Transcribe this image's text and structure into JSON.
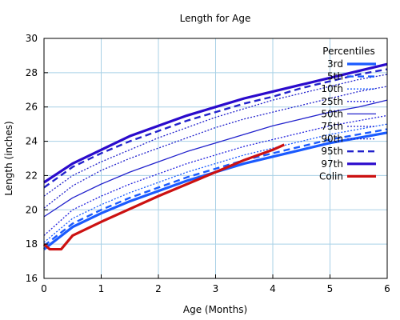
{
  "chart_data": {
    "type": "line",
    "title": "Length for Age",
    "xlabel": "Age (Months)",
    "ylabel": "Length (inches)",
    "xlim": [
      0,
      6
    ],
    "ylim": [
      16,
      30
    ],
    "x_ticks": [
      "0",
      "1",
      "2",
      "3",
      "4",
      "5",
      "6"
    ],
    "y_ticks": [
      "16",
      "18",
      "20",
      "22",
      "24",
      "26",
      "28",
      "30"
    ],
    "grid": true,
    "legend": {
      "title": "Percentiles",
      "placement": "top-right"
    },
    "x": [
      0,
      0.5,
      1,
      1.5,
      2,
      2.5,
      3,
      3.5,
      4,
      4.5,
      5,
      5.5,
      6
    ],
    "series": [
      {
        "name": "3rd",
        "color": "#1a5aff",
        "style": "solid",
        "width": "thick",
        "values": [
          17.7,
          19.0,
          19.8,
          20.5,
          21.1,
          21.7,
          22.2,
          22.7,
          23.1,
          23.5,
          23.9,
          24.2,
          24.5
        ]
      },
      {
        "name": "5th",
        "color": "#1a5aff",
        "style": "dashed",
        "width": "medium",
        "values": [
          17.9,
          19.2,
          20.0,
          20.7,
          21.3,
          21.9,
          22.4,
          22.9,
          23.3,
          23.7,
          24.1,
          24.4,
          24.7
        ]
      },
      {
        "name": "10th",
        "color": "#1a5aff",
        "style": "dotted",
        "width": "thin",
        "values": [
          18.1,
          19.5,
          20.3,
          21.0,
          21.6,
          22.2,
          22.7,
          23.2,
          23.6,
          24.0,
          24.4,
          24.7,
          25.0
        ]
      },
      {
        "name": "25th",
        "color": "#2222dd",
        "style": "dotted",
        "width": "thin",
        "values": [
          18.5,
          20.0,
          20.8,
          21.5,
          22.1,
          22.7,
          23.2,
          23.7,
          24.1,
          24.5,
          24.9,
          25.2,
          25.5
        ]
      },
      {
        "name": "50th",
        "color": "#2222cc",
        "style": "solid",
        "width": "thin",
        "values": [
          19.6,
          20.7,
          21.5,
          22.2,
          22.8,
          23.4,
          23.9,
          24.4,
          24.9,
          25.3,
          25.7,
          26.0,
          26.4
        ]
      },
      {
        "name": "75th",
        "color": "#2222cc",
        "style": "dotted",
        "width": "thin",
        "values": [
          20.1,
          21.4,
          22.3,
          23.0,
          23.6,
          24.2,
          24.8,
          25.3,
          25.7,
          26.1,
          26.5,
          26.9,
          27.2
        ]
      },
      {
        "name": "90th",
        "color": "#2222cc",
        "style": "dotted",
        "width": "thin",
        "values": [
          20.8,
          22.0,
          22.8,
          23.5,
          24.2,
          24.8,
          25.4,
          25.9,
          26.4,
          26.8,
          27.2,
          27.6,
          27.9
        ]
      },
      {
        "name": "95th",
        "color": "#2222cc",
        "style": "dashed",
        "width": "medium",
        "values": [
          21.3,
          22.5,
          23.3,
          24.0,
          24.6,
          25.2,
          25.7,
          26.2,
          26.6,
          27.1,
          27.5,
          27.9,
          28.2
        ]
      },
      {
        "name": "97th",
        "color": "#2a0acc",
        "style": "solid",
        "width": "thick",
        "values": [
          21.6,
          22.7,
          23.5,
          24.3,
          24.9,
          25.5,
          26.0,
          26.5,
          26.9,
          27.3,
          27.7,
          28.1,
          28.5
        ]
      },
      {
        "name": "Colin",
        "color": "#cc1111",
        "style": "solid",
        "width": "thick",
        "points": [
          [
            0,
            18.0
          ],
          [
            0.1,
            17.7
          ],
          [
            0.3,
            17.7
          ],
          [
            0.5,
            18.5
          ],
          [
            1,
            19.3
          ],
          [
            2,
            20.8
          ],
          [
            3,
            22.2
          ],
          [
            3.5,
            22.9
          ],
          [
            4,
            23.5
          ],
          [
            4.2,
            23.8
          ]
        ]
      }
    ]
  }
}
